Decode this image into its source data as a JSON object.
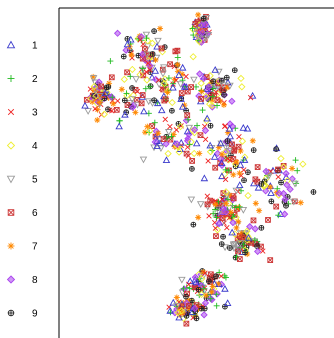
{
  "chart_data": {
    "type": "scatter",
    "title": "",
    "xlabel": "",
    "ylabel": "",
    "xlim": [
      0,
      100
    ],
    "ylim": [
      0,
      100
    ],
    "grid": false,
    "legend_position": "left",
    "series": [
      {
        "name": "1",
        "marker": "triangle",
        "color": "#3a3acc"
      },
      {
        "name": "2",
        "marker": "plus",
        "color": "#22bb22"
      },
      {
        "name": "3",
        "marker": "cross",
        "color": "#ee2222"
      },
      {
        "name": "4",
        "marker": "diamond",
        "color": "#eeee33"
      },
      {
        "name": "5",
        "marker": "triangle-down",
        "color": "#999999"
      },
      {
        "name": "6",
        "marker": "square-cross",
        "color": "#cc3333"
      },
      {
        "name": "7",
        "marker": "asterisk",
        "color": "#ff8800"
      },
      {
        "name": "8",
        "marker": "diamond-filled",
        "color": "#aa44ee"
      },
      {
        "name": "9",
        "marker": "circle-plus",
        "color": "#222222"
      }
    ],
    "clusters": [
      {
        "cx": 32,
        "cy": 86,
        "rx": 10,
        "ry": 9
      },
      {
        "cx": 45,
        "cy": 75,
        "rx": 14,
        "ry": 8
      },
      {
        "cx": 24,
        "cy": 72,
        "rx": 12,
        "ry": 7
      },
      {
        "cx": 60,
        "cy": 75,
        "rx": 9,
        "ry": 6
      },
      {
        "cx": 46,
        "cy": 60,
        "rx": 14,
        "ry": 7
      },
      {
        "cx": 66,
        "cy": 55,
        "rx": 10,
        "ry": 12
      },
      {
        "cx": 62,
        "cy": 38,
        "rx": 9,
        "ry": 6
      },
      {
        "cx": 84,
        "cy": 46,
        "rx": 10,
        "ry": 10
      },
      {
        "cx": 70,
        "cy": 28,
        "rx": 8,
        "ry": 6
      },
      {
        "cx": 56,
        "cy": 14,
        "rx": 8,
        "ry": 5
      },
      {
        "cx": 48,
        "cy": 7,
        "rx": 6,
        "ry": 3
      },
      {
        "cx": 54,
        "cy": 94,
        "rx": 3,
        "ry": 4
      },
      {
        "cx": 14,
        "cy": 74,
        "rx": 4,
        "ry": 5
      }
    ]
  }
}
